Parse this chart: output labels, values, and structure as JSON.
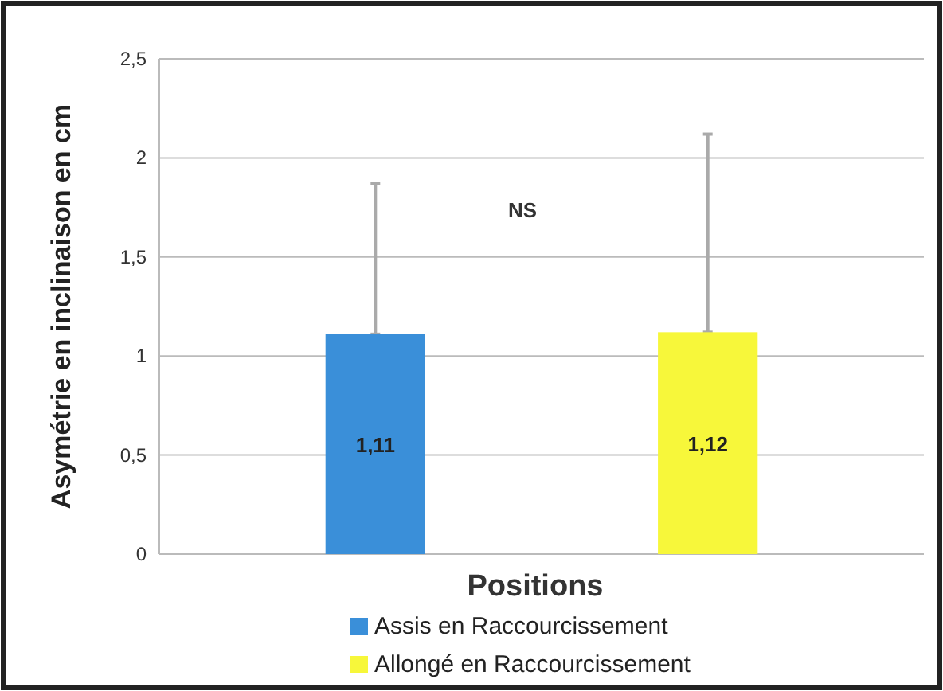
{
  "chart_data": {
    "type": "bar",
    "xlabel": "Positions",
    "ylabel": "Asymétrie en inclinaison en cm",
    "categories": [
      null
    ],
    "series": [
      {
        "name": "Assis en Raccourcissement",
        "color": "#3a8fd9",
        "values": [
          1.11
        ],
        "value_labels": [
          "1,11"
        ],
        "errors": [
          [
            1.11,
            1.87
          ]
        ]
      },
      {
        "name": "Allongé en Raccourcissement",
        "color": "#f7f73a",
        "values": [
          1.12
        ],
        "value_labels": [
          "1,12"
        ],
        "errors": [
          [
            1.12,
            2.12
          ]
        ]
      }
    ],
    "ylim": [
      0,
      2.5
    ],
    "yticks": [
      0,
      {
        "value": 0.5,
        "label": "0,5"
      },
      1,
      {
        "value": 1.5,
        "label": "1,5"
      },
      2,
      {
        "value": 2.5,
        "label": "2,5"
      }
    ],
    "grid": "y",
    "legend": "bottom",
    "annotations": [
      "NS"
    ]
  }
}
